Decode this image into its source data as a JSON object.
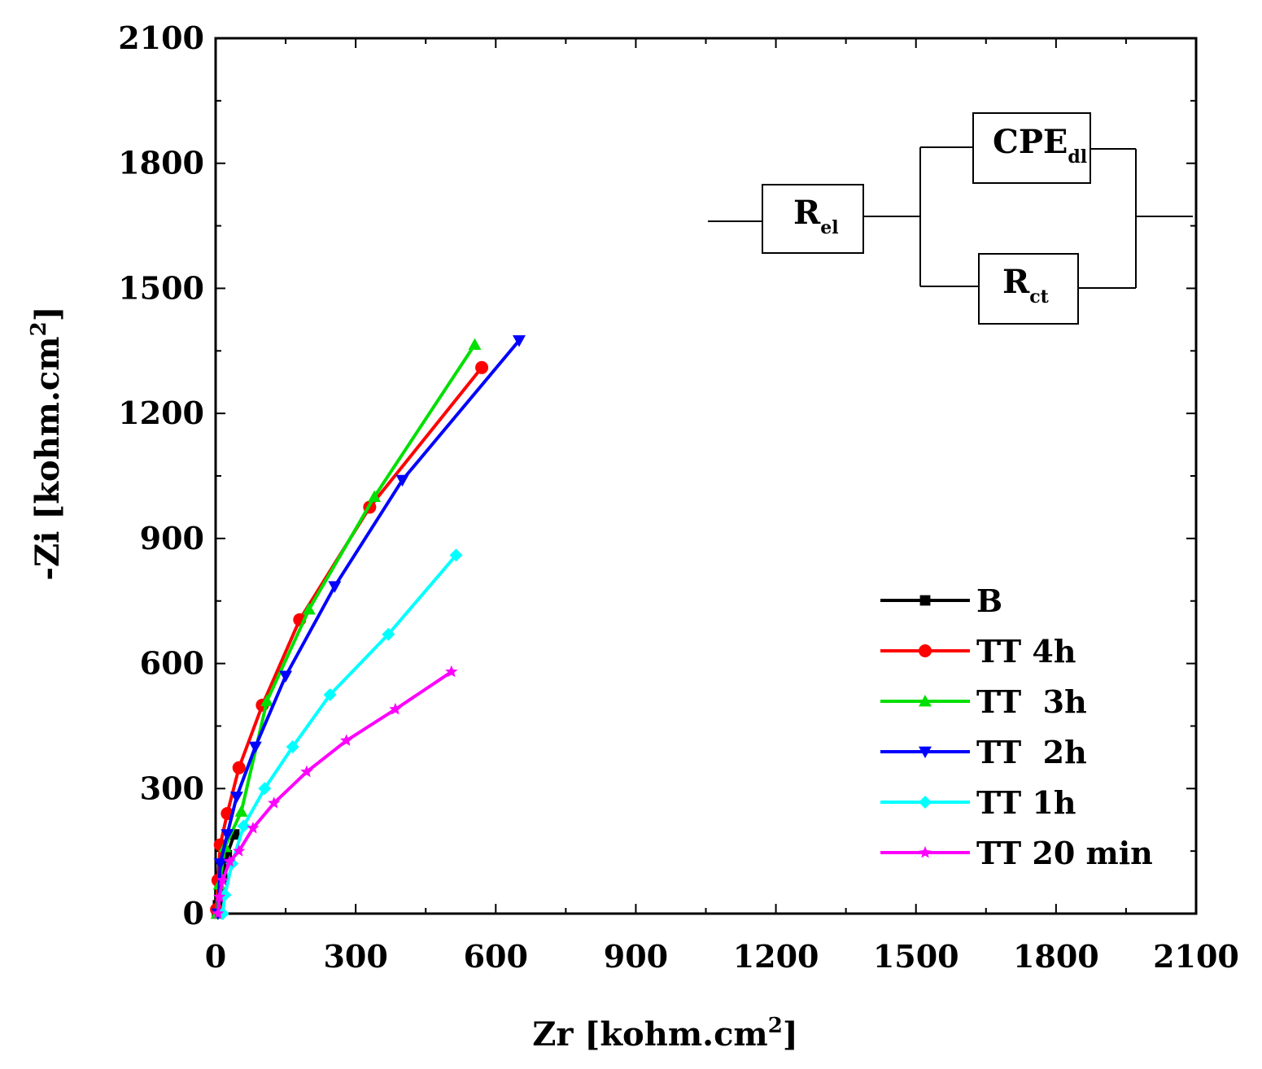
{
  "chart_data": {
    "type": "line",
    "xlabel": "Zr [kohm.cm",
    "xlabel_sup": "2",
    "xlabel_close": "]",
    "ylabel": "-Zi [kohm.cm",
    "ylabel_sup": "2",
    "ylabel_close": "]",
    "xlim": [
      0,
      2100
    ],
    "ylim": [
      0,
      2100
    ],
    "xticks": [
      "0",
      "300",
      "600",
      "900",
      "1200",
      "1500",
      "1800",
      "2100"
    ],
    "yticks": [
      "0",
      "300",
      "600",
      "900",
      "1200",
      "1500",
      "1800",
      "2100"
    ],
    "grid": false,
    "legend_position": "bottom-right",
    "series": [
      {
        "name": "B",
        "color": "#000000",
        "marker": "square",
        "points": [
          [
            3,
            0
          ],
          [
            5,
            20
          ],
          [
            8,
            45
          ],
          [
            14,
            85
          ],
          [
            24,
            140
          ],
          [
            40,
            190
          ]
        ]
      },
      {
        "name": "TT 4h",
        "color": "#ff0000",
        "marker": "circle",
        "points": [
          [
            2,
            10
          ],
          [
            5,
            80
          ],
          [
            10,
            165
          ],
          [
            25,
            240
          ],
          [
            50,
            350
          ],
          [
            100,
            500
          ],
          [
            180,
            705
          ],
          [
            330,
            975
          ],
          [
            570,
            1310
          ]
        ]
      },
      {
        "name": "TT  3h",
        "color": "#00e000",
        "marker": "triangle-up",
        "points": [
          [
            3,
            0
          ],
          [
            8,
            70
          ],
          [
            20,
            160
          ],
          [
            55,
            245
          ],
          [
            110,
            510
          ],
          [
            200,
            730
          ],
          [
            340,
            1000
          ],
          [
            555,
            1365
          ]
        ]
      },
      {
        "name": "TT  2h",
        "color": "#0000ff",
        "marker": "triangle-down",
        "points": [
          [
            5,
            0
          ],
          [
            10,
            120
          ],
          [
            25,
            190
          ],
          [
            45,
            280
          ],
          [
            85,
            400
          ],
          [
            150,
            570
          ],
          [
            255,
            785
          ],
          [
            400,
            1040
          ],
          [
            650,
            1375
          ]
        ]
      },
      {
        "name": "TT 1h",
        "color": "#00ffff",
        "marker": "diamond",
        "points": [
          [
            15,
            0
          ],
          [
            20,
            45
          ],
          [
            35,
            120
          ],
          [
            60,
            210
          ],
          [
            105,
            300
          ],
          [
            165,
            400
          ],
          [
            245,
            525
          ],
          [
            370,
            670
          ],
          [
            515,
            860
          ]
        ]
      },
      {
        "name": "TT 20 min",
        "color": "#ff00ff",
        "marker": "star",
        "points": [
          [
            5,
            0
          ],
          [
            8,
            40
          ],
          [
            15,
            80
          ],
          [
            30,
            125
          ],
          [
            50,
            150
          ],
          [
            80,
            205
          ],
          [
            125,
            265
          ],
          [
            195,
            340
          ],
          [
            280,
            415
          ],
          [
            385,
            490
          ],
          [
            505,
            580
          ]
        ]
      }
    ]
  },
  "circuit": {
    "r_el": "R",
    "r_el_sub": "el",
    "cpe_dl": "CPE",
    "cpe_dl_sub": "dl",
    "r_ct": "R",
    "r_ct_sub": "ct"
  }
}
